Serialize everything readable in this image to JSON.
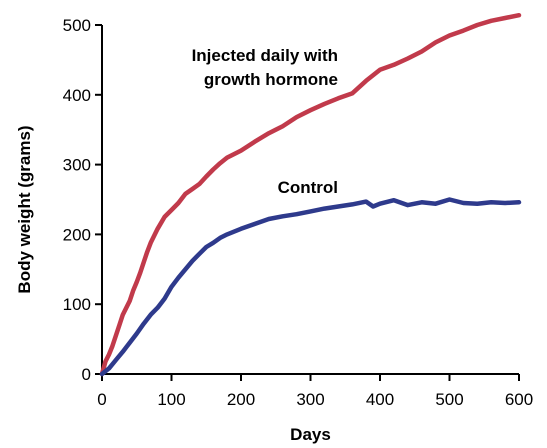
{
  "chart_data": {
    "type": "line",
    "xlabel": "Days",
    "ylabel": "Body weight (grams)",
    "xlim": [
      0,
      600
    ],
    "ylim": [
      0,
      500
    ],
    "x_ticks": [
      0,
      100,
      200,
      300,
      400,
      500,
      600
    ],
    "y_ticks": [
      0,
      100,
      200,
      300,
      400,
      500
    ],
    "grid": false,
    "series": [
      {
        "name": "Injected daily with growth hormone",
        "label_lines": [
          "Injected daily with",
          "growth hormone"
        ],
        "color": "#c13a4b",
        "points": [
          [
            0,
            0
          ],
          [
            5,
            18
          ],
          [
            10,
            28
          ],
          [
            15,
            40
          ],
          [
            20,
            55
          ],
          [
            25,
            70
          ],
          [
            30,
            85
          ],
          [
            35,
            95
          ],
          [
            40,
            105
          ],
          [
            45,
            120
          ],
          [
            50,
            132
          ],
          [
            55,
            145
          ],
          [
            60,
            160
          ],
          [
            65,
            175
          ],
          [
            70,
            188
          ],
          [
            80,
            208
          ],
          [
            90,
            225
          ],
          [
            100,
            235
          ],
          [
            110,
            245
          ],
          [
            120,
            258
          ],
          [
            130,
            265
          ],
          [
            140,
            272
          ],
          [
            150,
            283
          ],
          [
            160,
            293
          ],
          [
            170,
            302
          ],
          [
            180,
            310
          ],
          [
            200,
            320
          ],
          [
            220,
            333
          ],
          [
            240,
            345
          ],
          [
            260,
            355
          ],
          [
            280,
            368
          ],
          [
            300,
            378
          ],
          [
            320,
            387
          ],
          [
            340,
            395
          ],
          [
            360,
            402
          ],
          [
            380,
            420
          ],
          [
            400,
            436
          ],
          [
            420,
            443
          ],
          [
            440,
            452
          ],
          [
            460,
            462
          ],
          [
            480,
            475
          ],
          [
            500,
            485
          ],
          [
            520,
            492
          ],
          [
            540,
            500
          ],
          [
            560,
            506
          ],
          [
            580,
            510
          ],
          [
            600,
            514
          ]
        ]
      },
      {
        "name": "Control",
        "label_lines": [
          "Control"
        ],
        "color": "#2e3a8c",
        "points": [
          [
            0,
            0
          ],
          [
            10,
            8
          ],
          [
            20,
            20
          ],
          [
            30,
            32
          ],
          [
            40,
            45
          ],
          [
            50,
            58
          ],
          [
            60,
            72
          ],
          [
            70,
            85
          ],
          [
            80,
            95
          ],
          [
            90,
            108
          ],
          [
            100,
            125
          ],
          [
            110,
            138
          ],
          [
            120,
            150
          ],
          [
            130,
            162
          ],
          [
            140,
            172
          ],
          [
            150,
            182
          ],
          [
            160,
            188
          ],
          [
            170,
            195
          ],
          [
            180,
            200
          ],
          [
            200,
            208
          ],
          [
            220,
            215
          ],
          [
            240,
            222
          ],
          [
            260,
            226
          ],
          [
            280,
            229
          ],
          [
            300,
            233
          ],
          [
            320,
            237
          ],
          [
            340,
            240
          ],
          [
            360,
            243
          ],
          [
            380,
            247
          ],
          [
            390,
            240
          ],
          [
            400,
            244
          ],
          [
            420,
            249
          ],
          [
            440,
            242
          ],
          [
            460,
            246
          ],
          [
            480,
            244
          ],
          [
            500,
            250
          ],
          [
            520,
            245
          ],
          [
            540,
            244
          ],
          [
            560,
            246
          ],
          [
            580,
            245
          ],
          [
            600,
            246
          ]
        ]
      }
    ]
  }
}
